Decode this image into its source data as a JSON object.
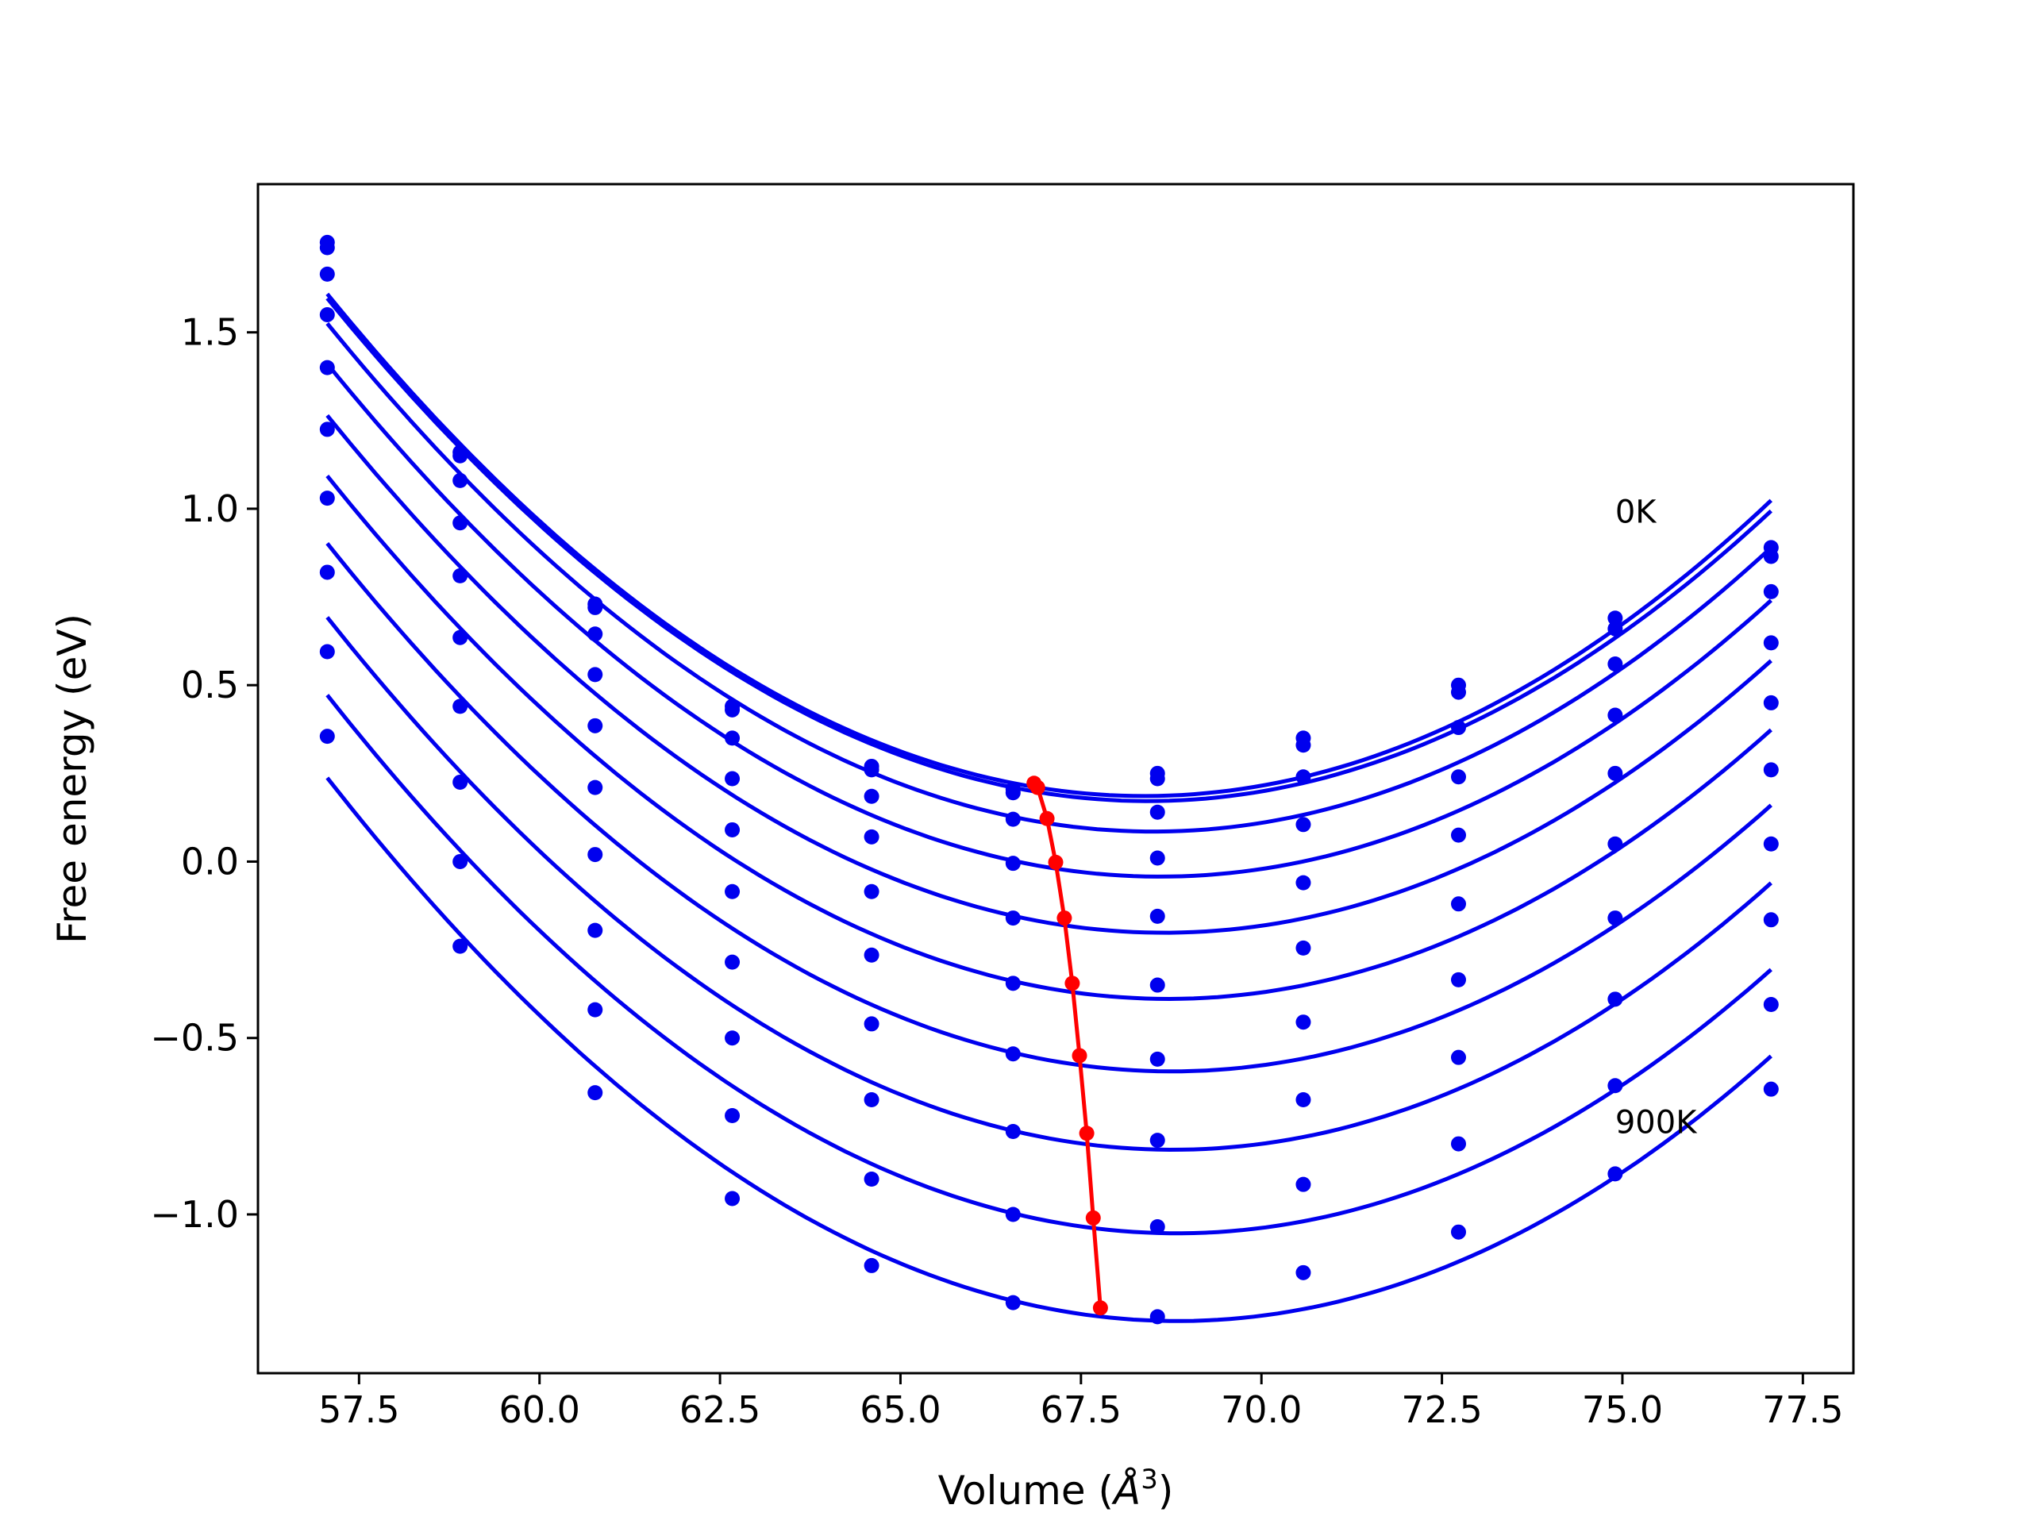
{
  "chart_data": {
    "type": "line",
    "xlabel_prefix": "Volume (",
    "xlabel_unit": "Å",
    "xlabel_exp": "3",
    "xlabel_suffix": ")",
    "ylabel": "Free energy (eV)",
    "xlim": [
      56.1,
      78.2
    ],
    "ylim": [
      -1.45,
      1.92
    ],
    "xticks": [
      57.5,
      60.0,
      62.5,
      65.0,
      67.5,
      70.0,
      72.5,
      75.0,
      77.5
    ],
    "xtick_labels": [
      "57.5",
      "60.0",
      "62.5",
      "65.0",
      "67.5",
      "70.0",
      "72.5",
      "75.0",
      "77.5"
    ],
    "yticks": [
      -1.0,
      -0.5,
      0.0,
      0.5,
      1.0,
      1.5
    ],
    "ytick_labels": [
      "−1.0",
      "−0.5",
      "0.0",
      "0.5",
      "1.0",
      "1.5"
    ],
    "grid": false,
    "legend": "none",
    "fit_color": "#0000ee",
    "point_color": "#0000ee",
    "min_color": "#ff0000",
    "annotations": [
      {
        "text": "0K",
        "x": 74.9,
        "y": 0.96
      },
      {
        "text": "900K",
        "x": 74.9,
        "y": -0.77
      }
    ],
    "volumes": [
      57.06,
      58.9,
      60.77,
      62.67,
      64.6,
      66.56,
      68.56,
      70.58,
      72.73,
      74.9,
      77.06
    ],
    "series": [
      {
        "points": [
          1.755,
          1.16,
          0.73,
          0.44,
          0.27,
          0.205,
          0.25,
          0.35,
          0.5,
          0.69,
          0.89
        ],
        "min": [
          66.85,
          0.222
        ]
      },
      {
        "points": [
          1.74,
          1.15,
          0.72,
          0.43,
          0.26,
          0.195,
          0.235,
          0.33,
          0.48,
          0.66,
          0.865
        ],
        "min": [
          66.9,
          0.21
        ]
      },
      {
        "points": [
          1.665,
          1.08,
          0.645,
          0.35,
          0.185,
          0.12,
          0.14,
          0.24,
          0.38,
          0.56,
          0.765
        ],
        "min": [
          67.03,
          0.122
        ]
      },
      {
        "points": [
          1.55,
          0.96,
          0.53,
          0.235,
          0.07,
          -0.005,
          0.01,
          0.105,
          0.24,
          0.415,
          0.62
        ],
        "min": [
          67.15,
          -0.002
        ]
      },
      {
        "points": [
          1.4,
          0.81,
          0.385,
          0.09,
          -0.085,
          -0.16,
          -0.155,
          -0.06,
          0.075,
          0.25,
          0.45
        ],
        "min": [
          67.27,
          -0.16
        ]
      },
      {
        "points": [
          1.225,
          0.635,
          0.21,
          -0.085,
          -0.265,
          -0.345,
          -0.35,
          -0.245,
          -0.12,
          0.05,
          0.26
        ],
        "min": [
          67.38,
          -0.345
        ]
      },
      {
        "points": [
          1.03,
          0.44,
          0.02,
          -0.285,
          -0.46,
          -0.545,
          -0.56,
          -0.455,
          -0.335,
          -0.16,
          0.05
        ],
        "min": [
          67.48,
          -0.55
        ]
      },
      {
        "points": [
          0.82,
          0.225,
          -0.195,
          -0.5,
          -0.675,
          -0.765,
          -0.79,
          -0.675,
          -0.555,
          -0.39,
          -0.165
        ],
        "min": [
          67.58,
          -0.77
        ]
      },
      {
        "points": [
          0.595,
          0.0,
          -0.42,
          -0.72,
          -0.9,
          -1.0,
          -1.035,
          -0.915,
          -0.8,
          -0.635,
          -0.405
        ],
        "min": [
          67.67,
          -1.01
        ]
      },
      {
        "points": [
          0.355,
          -0.24,
          -0.655,
          -0.955,
          -1.145,
          -1.25,
          -1.29,
          -1.165,
          -1.05,
          -0.885,
          -0.645
        ],
        "min": [
          67.77,
          -1.265
        ]
      }
    ]
  }
}
